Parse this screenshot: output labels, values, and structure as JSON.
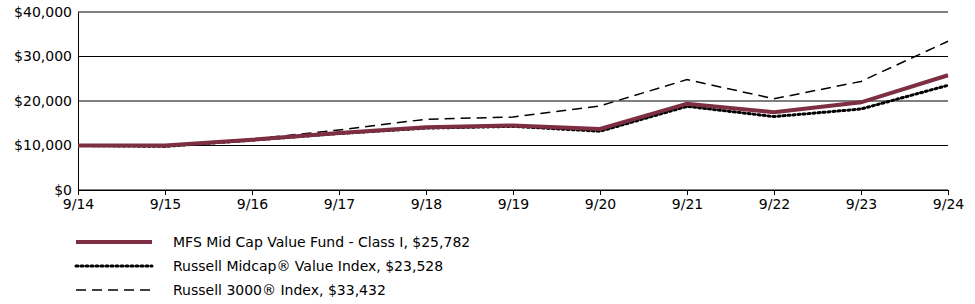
{
  "chart_data": {
    "type": "line",
    "categories": [
      "9/14",
      "9/15",
      "9/16",
      "9/17",
      "9/18",
      "9/19",
      "9/20",
      "9/21",
      "9/22",
      "9/23",
      "9/24"
    ],
    "series": [
      {
        "name": "MFS Mid Cap Value Fund - Class I, $25,782",
        "color": "#7d2e42",
        "line_style": "solid",
        "values": [
          10000,
          10000,
          11300,
          12800,
          14100,
          14500,
          13700,
          19400,
          17500,
          19700,
          25782
        ]
      },
      {
        "name": "Russell Midcap® Value Index, $23,528",
        "color": "#000000",
        "line_style": "dotted",
        "values": [
          10000,
          9800,
          11200,
          12700,
          13900,
          14300,
          13200,
          18800,
          16500,
          18200,
          23528
        ]
      },
      {
        "name": "Russell 3000® Index, $33,432",
        "color": "#000000",
        "line_style": "dashed",
        "values": [
          10000,
          10100,
          11400,
          13500,
          15900,
          16400,
          18900,
          24800,
          20500,
          24400,
          33432
        ]
      }
    ],
    "ylim": [
      0,
      40000
    ],
    "yticks": [
      {
        "value": 0,
        "label": "$0"
      },
      {
        "value": 10000,
        "label": "$10,000"
      },
      {
        "value": 20000,
        "label": "$20,000"
      },
      {
        "value": 30000,
        "label": "$30,000"
      },
      {
        "value": 40000,
        "label": "$40,000"
      }
    ],
    "grid": true,
    "legend": "bottom"
  }
}
